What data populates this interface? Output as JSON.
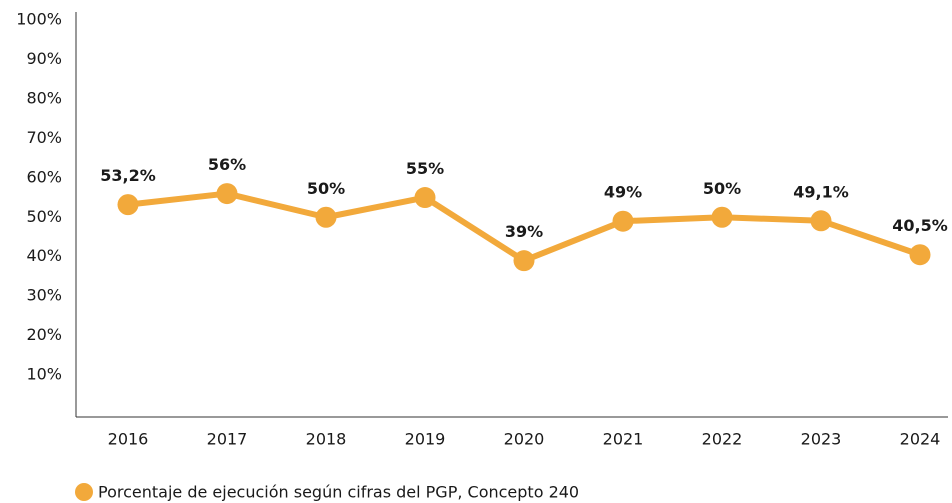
{
  "chart_data": {
    "type": "line",
    "categories": [
      "2016",
      "2017",
      "2018",
      "2019",
      "2020",
      "2021",
      "2022",
      "2023",
      "2024"
    ],
    "series": [
      {
        "name": "Porcentaje de ejecución según cifras del PGP, Concepto 240",
        "color": "#f2a93b",
        "values": [
          53.2,
          56,
          50,
          55,
          39,
          49,
          50,
          49.1,
          40.5
        ],
        "value_labels": [
          "53,2%",
          "56%",
          "50%",
          "55%",
          "39%",
          "49%",
          "50%",
          "49,1%",
          "40,5%"
        ]
      }
    ],
    "ylim": [
      0,
      100
    ],
    "yticks": [
      {
        "value": 10,
        "label": "10%"
      },
      {
        "value": 20,
        "label": "20%"
      },
      {
        "value": 30,
        "label": "30%"
      },
      {
        "value": 40,
        "label": "40%"
      },
      {
        "value": 50,
        "label": "50%"
      },
      {
        "value": 60,
        "label": "60%"
      },
      {
        "value": 70,
        "label": "70%"
      },
      {
        "value": 80,
        "label": "80%"
      },
      {
        "value": 90,
        "label": "90%"
      },
      {
        "value": 100,
        "label": "100%"
      }
    ],
    "grid": false,
    "legend": "bottom-left"
  }
}
